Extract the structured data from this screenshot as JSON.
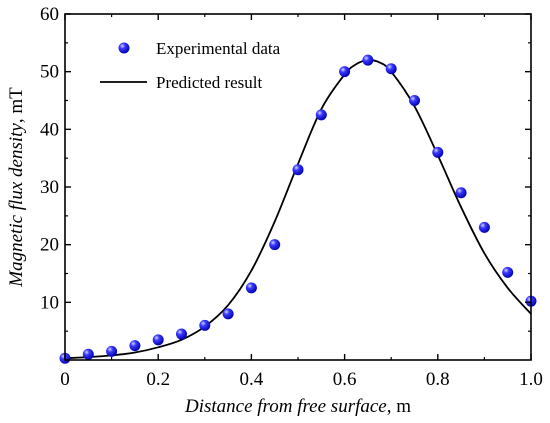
{
  "chart_data": {
    "type": "scatter",
    "xlabel_italic": "Distance from free surface",
    "xlabel_unit": ", m",
    "ylabel_italic": "Magnetic flux density",
    "ylabel_unit": ", mT",
    "xlim": [
      0,
      1.0
    ],
    "ylim": [
      0,
      60
    ],
    "x_ticks": [
      0,
      0.2,
      0.4,
      0.6,
      0.8,
      1.0
    ],
    "x_tick_labels": [
      "0",
      "0.2",
      "0.4",
      "0.6",
      "0.8",
      "1.0"
    ],
    "y_ticks": [
      10,
      20,
      30,
      40,
      50,
      60
    ],
    "y_tick_labels": [
      "10",
      "20",
      "30",
      "40",
      "50",
      "60"
    ],
    "grid": false,
    "legend_position": "top-left",
    "series": [
      {
        "name": "Experimental data",
        "kind": "markers",
        "color": "#1a1aff",
        "x": [
          0.0,
          0.05,
          0.1,
          0.15,
          0.2,
          0.25,
          0.3,
          0.35,
          0.4,
          0.45,
          0.5,
          0.55,
          0.6,
          0.65,
          0.7,
          0.75,
          0.8,
          0.85,
          0.9,
          0.95,
          1.0
        ],
        "y": [
          0.3,
          1.0,
          1.5,
          2.5,
          3.5,
          4.5,
          6.0,
          8.0,
          12.5,
          20.0,
          33.0,
          42.5,
          50.0,
          52.0,
          50.5,
          45.0,
          36.0,
          29.0,
          23.0,
          15.2,
          10.2
        ]
      },
      {
        "name": "Predicted result",
        "kind": "line",
        "color": "#000000",
        "x": [
          0.0,
          0.05,
          0.1,
          0.15,
          0.2,
          0.25,
          0.3,
          0.35,
          0.4,
          0.45,
          0.5,
          0.55,
          0.6,
          0.625,
          0.65,
          0.675,
          0.7,
          0.75,
          0.8,
          0.85,
          0.9,
          0.95,
          1.0
        ],
        "y": [
          0.3,
          0.5,
          0.8,
          1.3,
          2.2,
          3.5,
          5.8,
          9.5,
          15.5,
          24.0,
          34.0,
          43.5,
          49.5,
          51.3,
          52.0,
          51.6,
          50.0,
          44.0,
          35.5,
          26.5,
          18.5,
          12.5,
          8.0
        ]
      }
    ]
  }
}
